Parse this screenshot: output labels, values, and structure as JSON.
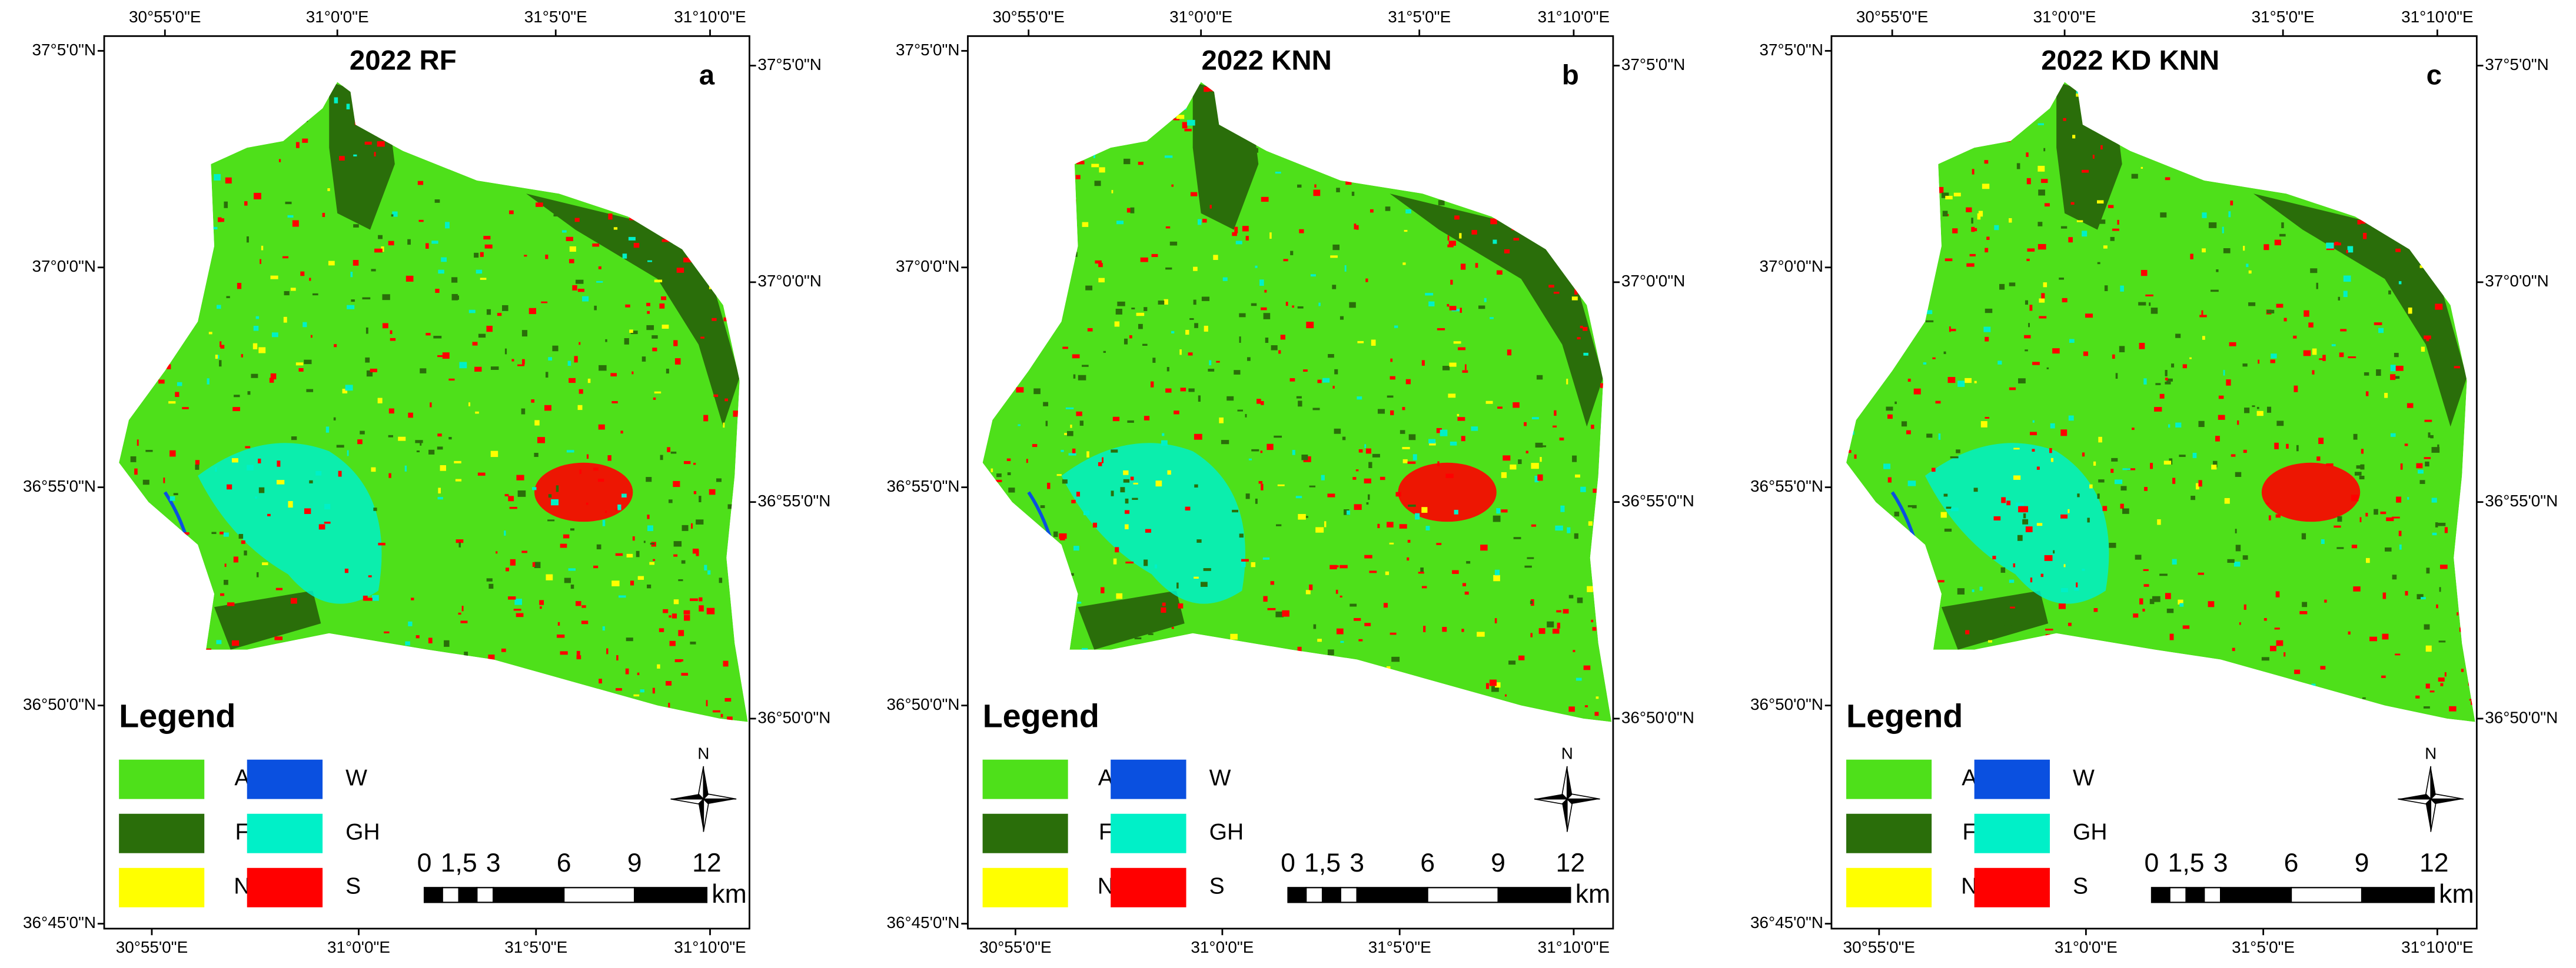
{
  "panels": [
    {
      "title": "2022 RF",
      "letter": "a",
      "top_ticks": [
        "30°55'0\"E",
        "31°0'0\"E",
        "31°5'0\"E",
        "31°10'0\"E"
      ],
      "bottom_ticks": [
        "30°55'0\"E",
        "31°0'0\"E",
        "31°5'0\"E",
        "31°10'0\"E"
      ],
      "left_ticks": [
        "37°5'0\"N",
        "37°0'0\"N",
        "36°55'0\"N",
        "36°50'0\"N",
        "36°45'0\"N"
      ],
      "right_ticks": [
        "37°5'0\"N",
        "37°0'0\"N",
        "36°55'0\"N",
        "36°50'0\"N"
      ],
      "legend": {
        "title": "Legend",
        "items": [
          {
            "label": "A",
            "color": "#4ee01a"
          },
          {
            "label": "W",
            "color": "#0a50e0"
          },
          {
            "label": "F",
            "color": "#2a6e0a"
          },
          {
            "label": "GH",
            "color": "#00f0c8"
          },
          {
            "label": "N",
            "color": "#ffff00"
          },
          {
            "label": "S",
            "color": "#ff0000"
          }
        ]
      },
      "scale": {
        "labels": [
          "0",
          "1,5",
          "3",
          "6",
          "9",
          "12"
        ],
        "unit": "km"
      },
      "north": "N"
    },
    {
      "title": "2022 KNN",
      "letter": "b",
      "top_ticks": [
        "30°55'0\"E",
        "31°0'0\"E",
        "31°5'0\"E",
        "31°10'0\"E"
      ],
      "bottom_ticks": [
        "30°55'0\"E",
        "31°0'0\"E",
        "31°5'0\"E",
        "31°10'0\"E"
      ],
      "left_ticks": [
        "37°5'0\"N",
        "37°0'0\"N",
        "36°55'0\"N",
        "36°50'0\"N",
        "36°45'0\"N"
      ],
      "right_ticks": [
        "37°5'0\"N",
        "37°0'0\"N",
        "36°55'0\"N",
        "36°50'0\"N"
      ],
      "legend": {
        "title": "Legend",
        "items": [
          {
            "label": "A",
            "color": "#4ee01a"
          },
          {
            "label": "W",
            "color": "#0a50e0"
          },
          {
            "label": "F",
            "color": "#2a6e0a"
          },
          {
            "label": "GH",
            "color": "#00f0c8"
          },
          {
            "label": "N",
            "color": "#ffff00"
          },
          {
            "label": "S",
            "color": "#ff0000"
          }
        ]
      },
      "scale": {
        "labels": [
          "0",
          "1,5",
          "3",
          "6",
          "9",
          "12"
        ],
        "unit": "km"
      },
      "north": "N"
    },
    {
      "title": "2022 KD KNN",
      "letter": "c",
      "top_ticks": [
        "30°55'0\"E",
        "31°0'0\"E",
        "31°5'0\"E",
        "31°10'0\"E"
      ],
      "bottom_ticks": [
        "30°55'0\"E",
        "31°0'0\"E",
        "31°5'0\"E",
        "31°10'0\"E"
      ],
      "left_ticks": [
        "37°5'0\"N",
        "37°0'0\"N",
        "36°55'0\"N",
        "36°50'0\"N",
        "36°45'0\"N"
      ],
      "right_ticks": [
        "37°5'0\"N",
        "37°0'0\"N",
        "36°55'0\"N",
        "36°50'0\"N"
      ],
      "legend": {
        "title": "Legend",
        "items": [
          {
            "label": "A",
            "color": "#4ee01a"
          },
          {
            "label": "W",
            "color": "#0a50e0"
          },
          {
            "label": "F",
            "color": "#2a6e0a"
          },
          {
            "label": "GH",
            "color": "#00f0c8"
          },
          {
            "label": "N",
            "color": "#ffff00"
          },
          {
            "label": "S",
            "color": "#ff0000"
          }
        ]
      },
      "scale": {
        "labels": [
          "0",
          "1,5",
          "3",
          "6",
          "9",
          "12"
        ],
        "unit": "km"
      },
      "north": "N"
    }
  ]
}
